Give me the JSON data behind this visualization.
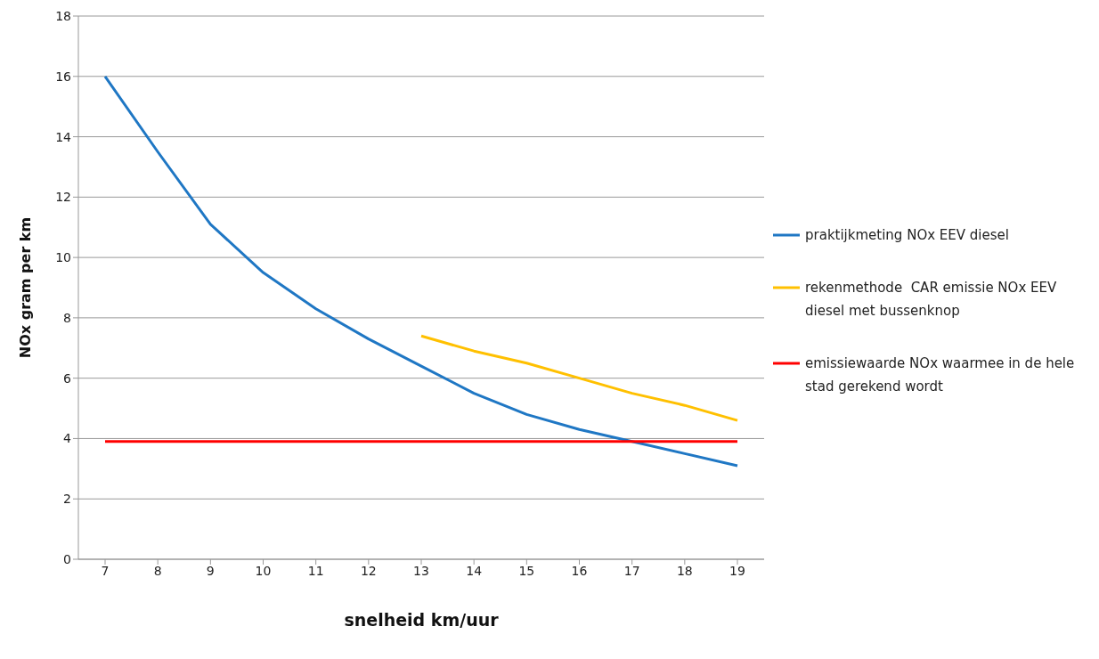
{
  "chart_data": {
    "type": "line",
    "xlabel": "snelheid km/uur",
    "ylabel": "NOx gram per km",
    "categories": [
      "7",
      "8",
      "9",
      "10",
      "11",
      "12",
      "13",
      "14",
      "15",
      "16",
      "17",
      "18",
      "19"
    ],
    "series": [
      {
        "name": "praktijkmeting NOx EEV diesel",
        "color": "#1f77c4",
        "values": [
          16,
          13.5,
          11.1,
          9.5,
          8.3,
          7.3,
          6.4,
          5.5,
          4.8,
          4.3,
          3.9,
          3.5,
          3.1
        ]
      },
      {
        "name": "rekenmethode  CAR emissie NOx EEV diesel met bussenknop",
        "color": "#ffc000",
        "values": [
          null,
          null,
          null,
          null,
          null,
          null,
          7.4,
          6.9,
          6.5,
          6.0,
          5.5,
          5.1,
          4.6
        ]
      },
      {
        "name": "emissiewaarde NOx waarmee in de hele stad gerekend wordt",
        "color": "#ff0000",
        "values": [
          3.9,
          3.9,
          3.9,
          3.9,
          3.9,
          3.9,
          3.9,
          3.9,
          3.9,
          3.9,
          3.9,
          3.9,
          3.9
        ]
      }
    ],
    "ylim": [
      0,
      18
    ],
    "yticks": [
      0,
      2,
      4,
      6,
      8,
      10,
      12,
      14,
      16,
      18
    ],
    "grid": "y",
    "legend": "right",
    "marker": "none",
    "line_style": "solid"
  }
}
